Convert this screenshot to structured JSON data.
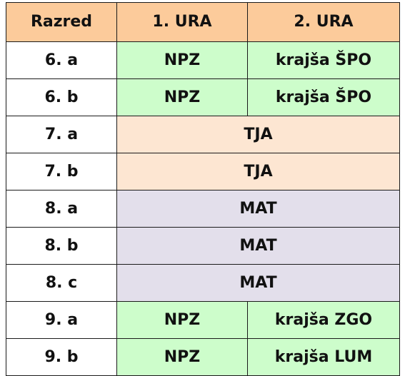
{
  "headers": {
    "class": "Razred",
    "hour1": "1. URA",
    "hour2": "2. URA"
  },
  "colors": {
    "header": "#fccb9b",
    "green": "#cdfdcb",
    "peach": "#fde6d2",
    "lavender": "#e3dfeb"
  },
  "rows": [
    {
      "class": "6. a",
      "hour1": "NPZ",
      "hour2": "krajša ŠPO"
    },
    {
      "class": "6. b",
      "hour1": "NPZ",
      "hour2": "krajša ŠPO"
    },
    {
      "class": "7. a",
      "both": "TJA"
    },
    {
      "class": "7. b",
      "both": "TJA"
    },
    {
      "class": "8. a",
      "both": "MAT"
    },
    {
      "class": "8. b",
      "both": "MAT"
    },
    {
      "class": "8. c",
      "both": "MAT"
    },
    {
      "class": "9. a",
      "hour1": "NPZ",
      "hour2": "krajša ZGO"
    },
    {
      "class": "9. b",
      "hour1": "NPZ",
      "hour2": "krajša LUM"
    }
  ]
}
